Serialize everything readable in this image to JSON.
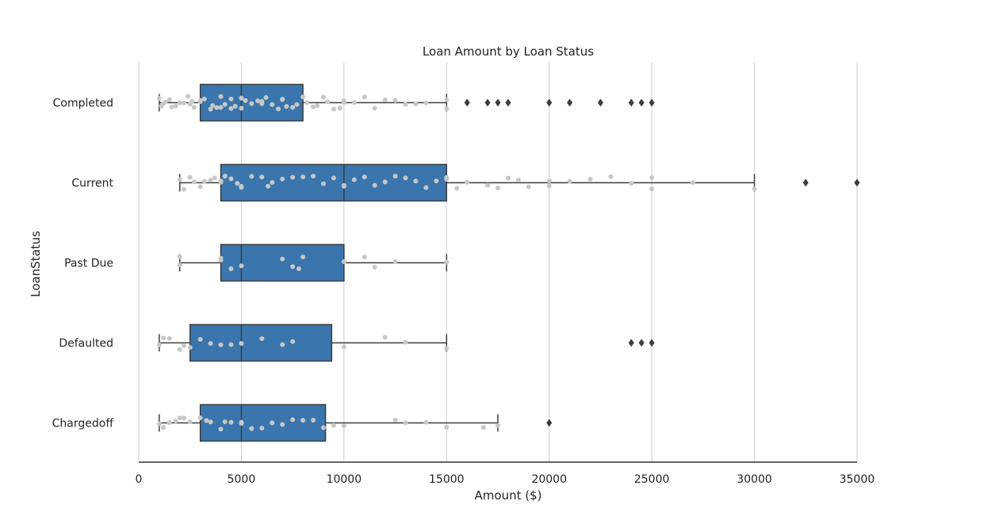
{
  "chart_data": {
    "type": "boxplot",
    "title": "Loan Amount by Loan Status",
    "xlabel": "Amount ($)",
    "ylabel": "LoanStatus",
    "xlim": [
      0,
      35000
    ],
    "xticks": [
      "0",
      "5000",
      "10000",
      "15000",
      "20000",
      "25000",
      "30000",
      "35000"
    ],
    "grid": "vertical",
    "colors": {
      "box": "#3a76ad",
      "edge": "#3d3d3d",
      "points": "#c7c7c7",
      "grid": "#cccccc"
    },
    "categories": [
      "Completed",
      "Current",
      "Past Due",
      "Defaulted",
      "Chargedoff"
    ],
    "boxes": [
      {
        "category": "Completed",
        "whisker_low": 1000,
        "q1": 3000,
        "median": 5000,
        "q3": 8000,
        "whisker_high": 15000,
        "outliers": [
          16000,
          17000,
          17500,
          18000,
          20000,
          21000,
          22500,
          24000,
          24500,
          25000
        ],
        "points": [
          1000,
          1100,
          1200,
          1300,
          1500,
          1600,
          1800,
          2000,
          2000,
          2200,
          2400,
          2500,
          2500,
          2600,
          2700,
          3000,
          3000,
          3200,
          3500,
          3600,
          3800,
          4000,
          4000,
          4200,
          4500,
          4500,
          4700,
          5000,
          5000,
          5000,
          5200,
          5500,
          5800,
          6000,
          6000,
          6200,
          6500,
          6800,
          7000,
          7000,
          7200,
          7500,
          7700,
          8000,
          8200,
          8500,
          8700,
          9000,
          9200,
          9500,
          9800,
          10000,
          10000,
          10500,
          11000,
          11500,
          12000,
          12500,
          13000,
          13500,
          14000,
          15000,
          15000
        ]
      },
      {
        "category": "Current",
        "whisker_low": 2000,
        "q1": 4000,
        "median": 10000,
        "q3": 15000,
        "whisker_high": 30000,
        "outliers": [
          32500,
          35000
        ],
        "points": [
          2000,
          2200,
          2500,
          2700,
          3000,
          3200,
          3500,
          3700,
          4000,
          4000,
          4200,
          4500,
          4800,
          5000,
          5000,
          5500,
          6000,
          6300,
          6500,
          7000,
          7500,
          8000,
          8500,
          9000,
          9500,
          10000,
          10000,
          10500,
          11000,
          11500,
          12000,
          12500,
          13000,
          13500,
          14000,
          14500,
          15000,
          15000,
          15500,
          16000,
          17000,
          17500,
          18000,
          18500,
          19000,
          20000,
          20000,
          21000,
          22000,
          23000,
          24000,
          25000,
          25000,
          27000,
          30000
        ]
      },
      {
        "category": "Past Due",
        "whisker_low": 2000,
        "q1": 4000,
        "median": 5000,
        "q3": 10000,
        "whisker_high": 15000,
        "outliers": [],
        "points": [
          2000,
          2000,
          4000,
          4000,
          4500,
          5000,
          7000,
          7500,
          7800,
          8000,
          10000,
          11000,
          11500,
          12500,
          15000
        ]
      },
      {
        "category": "Defaulted",
        "whisker_low": 1000,
        "q1": 2500,
        "median": 5000,
        "q3": 9400,
        "whisker_high": 15000,
        "outliers": [
          24000,
          24500,
          25000
        ],
        "points": [
          1000,
          1200,
          1500,
          2000,
          2200,
          2500,
          3000,
          3500,
          4000,
          4500,
          5000,
          6000,
          7000,
          7500,
          10000,
          12000,
          13000,
          15000
        ]
      },
      {
        "category": "Chargedoff",
        "whisker_low": 1000,
        "q1": 3000,
        "median": 5000,
        "q3": 9100,
        "whisker_high": 17500,
        "outliers": [
          20000
        ],
        "points": [
          1000,
          1200,
          1500,
          1800,
          2000,
          2200,
          2500,
          3000,
          3300,
          3500,
          4000,
          4200,
          4500,
          5000,
          5000,
          5500,
          6000,
          6500,
          7000,
          7500,
          8000,
          8500,
          9000,
          9500,
          10000,
          12500,
          13000,
          14000,
          15000,
          16800,
          17500
        ]
      }
    ]
  }
}
